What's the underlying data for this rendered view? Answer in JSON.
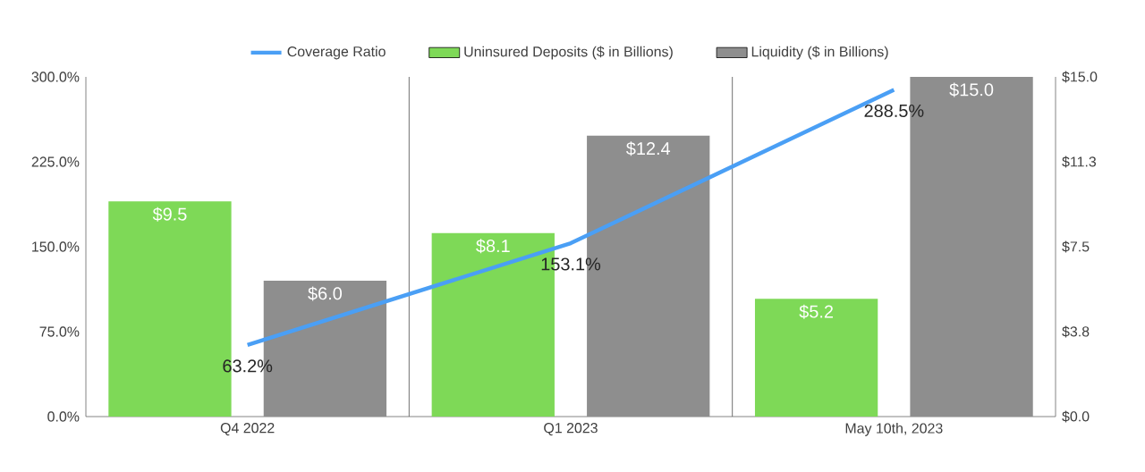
{
  "chart_data": {
    "type": "bar",
    "categories": [
      "Q4 2022",
      "Q1 2023",
      "May 10th, 2023"
    ],
    "series": [
      {
        "name": "Coverage Ratio",
        "type": "line",
        "color": "#4a9ff5",
        "values": [
          63.2,
          153.1,
          288.5
        ],
        "value_labels": [
          "63.2%",
          "153.1%",
          "288.5%"
        ]
      },
      {
        "name": "Uninsured Deposits ($ in Billions)",
        "color": "#7ed957",
        "axis": "y2",
        "values": [
          9.5,
          8.1,
          5.2
        ],
        "value_labels": [
          "$9.5",
          "$8.1",
          "$5.2"
        ]
      },
      {
        "name": "Liquidity ($ in Billions)",
        "color": "#8e8e8e",
        "axis": "y2",
        "values": [
          6.0,
          12.4,
          15.0
        ],
        "value_labels": [
          "$6.0",
          "$12.4",
          "$15.0"
        ]
      }
    ],
    "ylim": [
      0,
      300
    ],
    "yticks": [
      {
        "value": 0,
        "label": "0.0%"
      },
      {
        "value": 75,
        "label": "75.0%"
      },
      {
        "value": 150,
        "label": "150.0%"
      },
      {
        "value": 225,
        "label": "225.0%"
      },
      {
        "value": 300,
        "label": "300.0%"
      }
    ],
    "y2lim": [
      0,
      15
    ],
    "y2ticks": [
      {
        "value": 0,
        "label": "$0.0"
      },
      {
        "value": 3.75,
        "label": "$3.8"
      },
      {
        "value": 7.5,
        "label": "$7.5"
      },
      {
        "value": 11.25,
        "label": "$11.3"
      },
      {
        "value": 15,
        "label": "$15.0"
      }
    ],
    "grid": "x",
    "legend": "top",
    "marker": "none",
    "line_style": "solid"
  }
}
